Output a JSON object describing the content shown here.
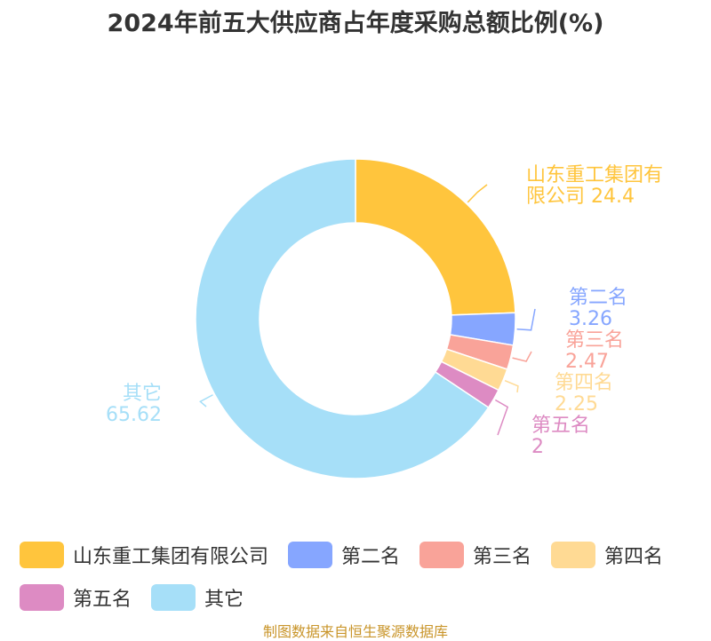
{
  "chart_data": {
    "type": "pie",
    "variant": "donut",
    "title": "2024年前五大供应商占年度采购总额比例(%)",
    "series": [
      {
        "name": "山东重工集团有限公司",
        "value": 24.4,
        "label_lines": [
          "山东重工集团有",
          "限公司 24.4"
        ],
        "color": "#FFC53D"
      },
      {
        "name": "第二名",
        "value": 3.26,
        "label_lines": [
          "第二名",
          "3.26"
        ],
        "color": "#86A6FF"
      },
      {
        "name": "第三名",
        "value": 2.47,
        "label_lines": [
          "第三名",
          "2.47"
        ],
        "color": "#F9A399"
      },
      {
        "name": "第四名",
        "value": 2.25,
        "label_lines": [
          "第四名",
          "2.25"
        ],
        "color": "#FFDA94"
      },
      {
        "name": "第五名",
        "value": 2,
        "label_lines": [
          "第五名",
          "2"
        ],
        "color": "#DD8BC3"
      },
      {
        "name": "其它",
        "value": 65.62,
        "label_lines": [
          "其它",
          "65.62"
        ],
        "color": "#A6DFF8"
      }
    ],
    "legend_position": "bottom",
    "source": "制图数据来自恒生聚源数据库"
  }
}
